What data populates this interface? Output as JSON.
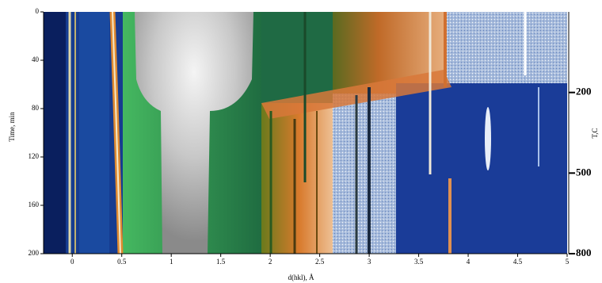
{
  "chart_data": {
    "type": "heatmap",
    "x_label": "d(hkl), Å",
    "y_label": "Time, min",
    "y2_label": "T,C",
    "xlim": [
      -0.29,
      5
    ],
    "xticks": [
      0,
      0.5,
      1,
      1.5,
      2,
      2.5,
      3,
      3.5,
      4,
      4.5,
      5
    ],
    "ylim": [
      0,
      200
    ],
    "yticks": [
      0,
      40,
      80,
      120,
      160,
      200
    ],
    "y2lim": [
      -100,
      800
    ],
    "y2ticks": [
      200,
      500,
      800
    ]
  }
}
